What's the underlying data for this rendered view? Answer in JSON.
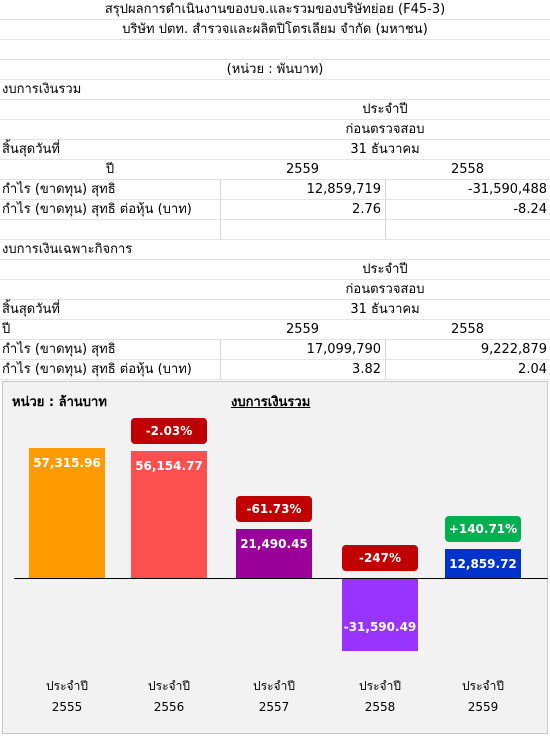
{
  "header": {
    "title": "สรุปผลการดำเนินงานของบจ.และรวมของบริษัทย่อย (F45-3)",
    "company": "บริษัท ปตท. สำรวจและผลิตปิโตรเลียม จำกัด (มหาชน)",
    "unit": "(หน่วย : พันบาท)"
  },
  "consolidated": {
    "section_title": "งบการเงินรวม",
    "period_label": "ประจำปี",
    "audit_status": "ก่อนตรวจสอบ",
    "ending_label": "สิ้นสุดวันที่",
    "ending_date": "31 ธันวาคม",
    "year_label": "ปี",
    "year_current": "2559",
    "year_previous": "2558",
    "rows": [
      {
        "label": "กำไร (ขาดทุน) สุทธิ",
        "current": "12,859,719",
        "previous": "-31,590,488"
      },
      {
        "label": "กำไร (ขาดทุน) สุทธิ ต่อหุ้น (บาท)",
        "current": "2.76",
        "previous": "-8.24"
      }
    ]
  },
  "separate": {
    "section_title": "งบการเงินเฉพาะกิจการ",
    "period_label": "ประจำปี",
    "audit_status": "ก่อนตรวจสอบ",
    "ending_label": "สิ้นสุดวันที่",
    "ending_date": "31 ธันวาคม",
    "year_label": "ปี",
    "year_current": "2559",
    "year_previous": "2558",
    "rows": [
      {
        "label": "กำไร (ขาดทุน) สุทธิ",
        "current": "17,099,790",
        "previous": "9,222,879"
      },
      {
        "label": "กำไร (ขาดทุน) สุทธิ ต่อหุ้น (บาท)",
        "current": "3.82",
        "previous": "2.04"
      }
    ]
  },
  "chart_data": {
    "type": "bar",
    "title": "งบการเงินรวม",
    "unit_label": "หน่วย : ล้านบาท",
    "category_prefix": "ประจำปี",
    "categories": [
      "2555",
      "2556",
      "2557",
      "2558",
      "2559"
    ],
    "values": [
      57315.96,
      56154.77,
      21490.45,
      -31590.49,
      12859.72
    ],
    "value_labels": [
      "57,315.96",
      "56,154.77",
      "21,490.45",
      "-31,590.49",
      "12,859.72"
    ],
    "changes": [
      "",
      "-2.03%",
      "-61.73%",
      "-247%",
      "+140.71%"
    ],
    "bar_colors": [
      "#ff9a00",
      "#ff5050",
      "#990099",
      "#9933ff",
      "#0033cc"
    ],
    "change_colors": [
      "",
      "#c00000",
      "#c00000",
      "#c00000",
      "#00b050"
    ]
  }
}
